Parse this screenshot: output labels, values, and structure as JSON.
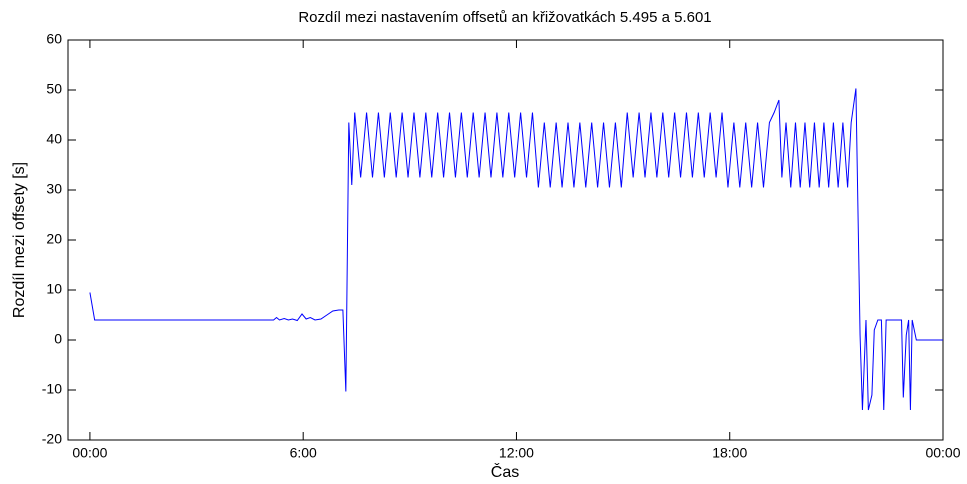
{
  "chart_data": {
    "type": "line",
    "title": "Rozdíl mezi nastavením offsetů an křižovatkách 5.495 a 5.601",
    "x_label": "Čas",
    "y_label": "Rozdíl mezi offsety [s]",
    "xlim": [
      -37,
      1440
    ],
    "ylim": [
      -20,
      60
    ],
    "xticks": [
      {
        "value": 0,
        "label": "00:00"
      },
      {
        "value": 360,
        "label": "6:00"
      },
      {
        "value": 720,
        "label": "12:00"
      },
      {
        "value": 1080,
        "label": "18:00"
      },
      {
        "value": 1440,
        "label": "00:00"
      }
    ],
    "yticks": [
      -20,
      -10,
      0,
      10,
      20,
      30,
      40,
      50,
      60
    ],
    "series": [
      {
        "color": "#0000ff",
        "x": [
          0,
          8,
          310,
          315,
          320,
          328,
          335,
          342,
          350,
          358,
          365,
          372,
          380,
          390,
          400,
          410,
          420,
          427,
          432,
          437,
          442,
          447,
          457,
          467,
          477,
          487,
          497,
          507,
          517,
          527,
          537,
          547,
          557,
          567,
          577,
          587,
          597,
          607,
          617,
          627,
          637,
          647,
          657,
          667,
          677,
          687,
          697,
          707,
          717,
          727,
          737,
          747,
          757,
          767,
          777,
          787,
          797,
          807,
          817,
          827,
          837,
          847,
          857,
          867,
          877,
          887,
          897,
          907,
          917,
          927,
          937,
          947,
          957,
          967,
          977,
          987,
          997,
          1007,
          1017,
          1027,
          1037,
          1047,
          1057,
          1067,
          1077,
          1087,
          1097,
          1107,
          1117,
          1127,
          1137,
          1147,
          1155,
          1163,
          1168,
          1175,
          1183,
          1191,
          1199,
          1207,
          1215,
          1223,
          1231,
          1239,
          1247,
          1255,
          1263,
          1271,
          1279,
          1285,
          1293,
          1300,
          1304,
          1310,
          1314,
          1320,
          1324,
          1330,
          1336,
          1340,
          1344,
          1370,
          1373,
          1378,
          1382,
          1385,
          1388,
          1395,
          1440
        ],
        "values": [
          9.5,
          4,
          4,
          4.5,
          4,
          4.3,
          4,
          4.2,
          3.9,
          5.2,
          4.2,
          4.5,
          4,
          4.2,
          5,
          5.8,
          6,
          6,
          -10.3,
          43.5,
          31,
          45.5,
          32.5,
          45.5,
          32.5,
          45.5,
          32.5,
          45.5,
          32.5,
          45.5,
          32.5,
          45.5,
          32.5,
          45.5,
          32.5,
          45.5,
          32.5,
          45.5,
          32.5,
          45.5,
          32.5,
          45.5,
          32.5,
          45.5,
          32.5,
          45.5,
          32.5,
          45.5,
          32.5,
          45.5,
          32.5,
          45.5,
          30.5,
          43.5,
          30.5,
          43.5,
          30.5,
          43.5,
          30.5,
          43.5,
          30.5,
          43.5,
          30.5,
          43.5,
          30.5,
          43.5,
          30.5,
          45.5,
          32.5,
          45.5,
          32.5,
          45.5,
          32.5,
          45.5,
          32.5,
          45.5,
          32.5,
          45.5,
          32.5,
          45.5,
          32.5,
          45.5,
          32.5,
          45.5,
          30.5,
          43.5,
          30.5,
          43.5,
          30.5,
          43.5,
          30.5,
          43.5,
          45.5,
          48,
          32.5,
          43.5,
          30.5,
          43.5,
          30.5,
          43.5,
          30.5,
          43.5,
          30.5,
          43.5,
          30.5,
          43.5,
          30.5,
          43.5,
          30.5,
          43.5,
          50.3,
          1,
          -14,
          4,
          -14,
          -11,
          2,
          4,
          4,
          -14,
          4,
          4,
          -11.5,
          1,
          4,
          -14,
          4,
          0,
          0
        ]
      }
    ]
  }
}
